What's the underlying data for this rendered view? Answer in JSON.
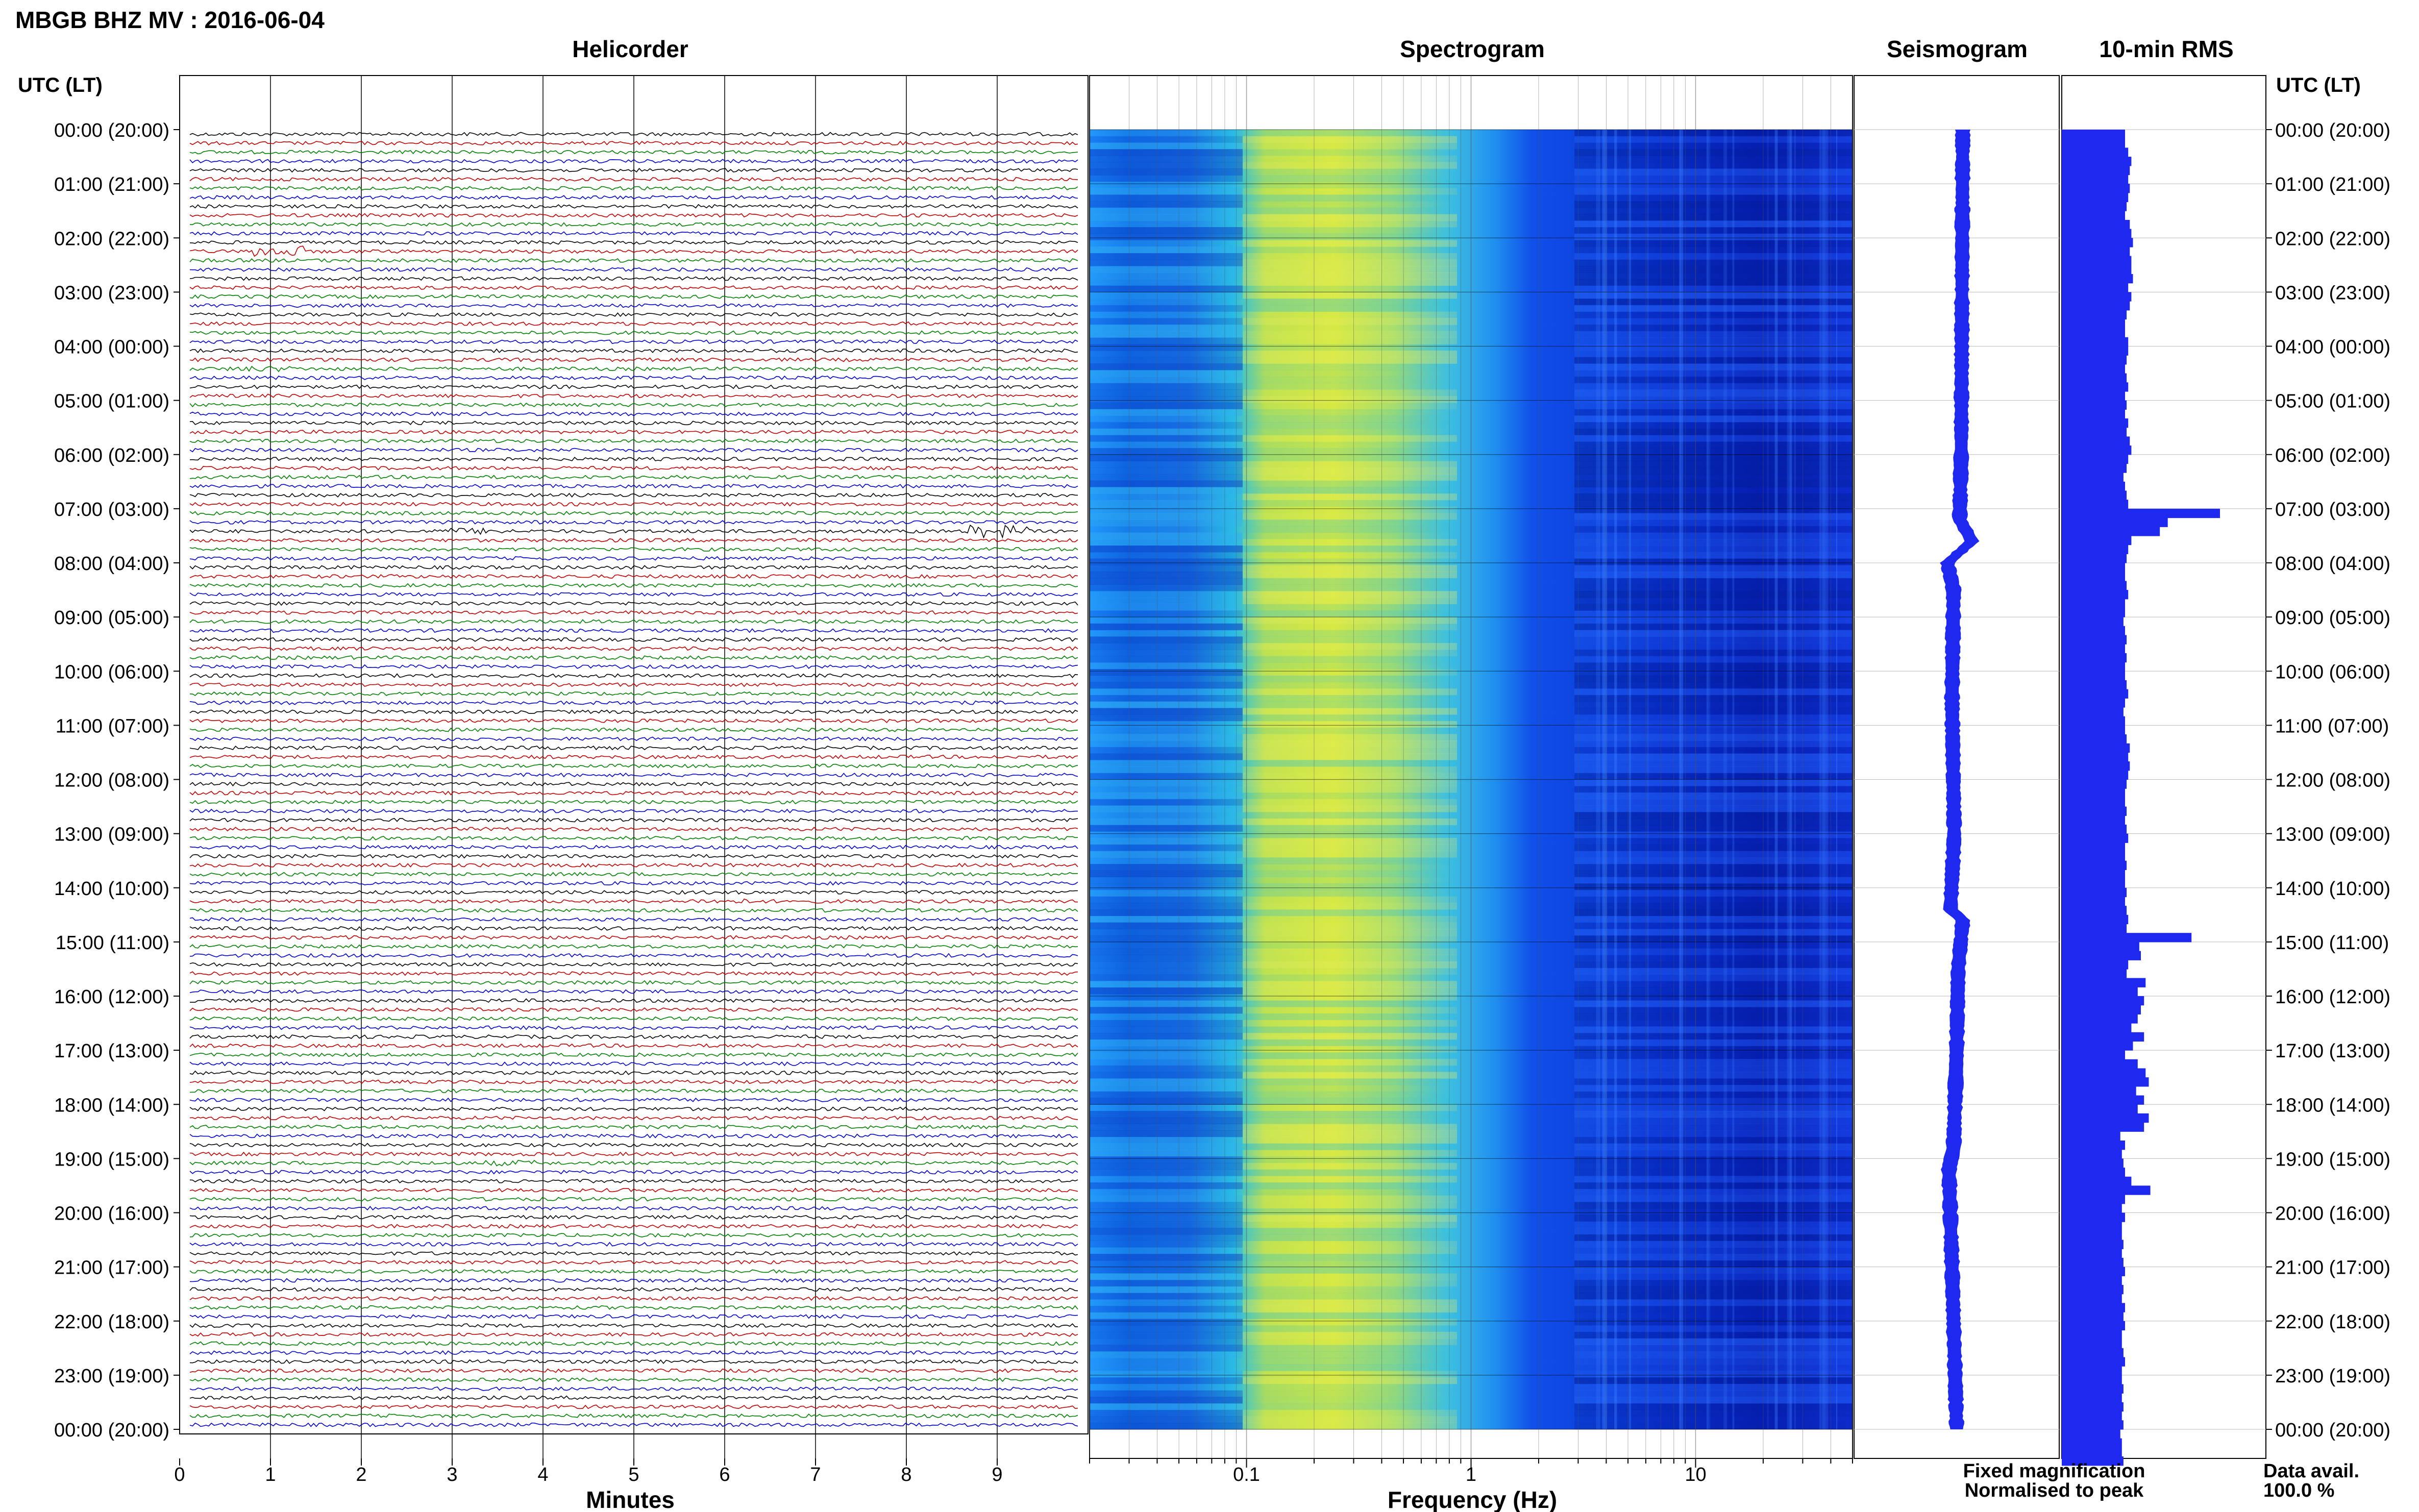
{
  "header": {
    "title": "MBGB BHZ MV : 2016-06-04"
  },
  "panels": {
    "helicorder": "Helicorder",
    "spectrogram": "Spectrogram",
    "seismogram": "Seismogram",
    "rms": "10-min RMS"
  },
  "time_axis": {
    "title_left": "UTC (LT)",
    "title_right": "UTC (LT)",
    "labels": [
      "00:00 (20:00)",
      "01:00 (21:00)",
      "02:00 (22:00)",
      "03:00 (23:00)",
      "04:00 (00:00)",
      "05:00 (01:00)",
      "06:00 (02:00)",
      "07:00 (03:00)",
      "08:00 (04:00)",
      "09:00 (05:00)",
      "10:00 (06:00)",
      "11:00 (07:00)",
      "12:00 (08:00)",
      "13:00 (09:00)",
      "14:00 (10:00)",
      "15:00 (11:00)",
      "16:00 (12:00)",
      "17:00 (13:00)",
      "18:00 (14:00)",
      "19:00 (15:00)",
      "20:00 (16:00)",
      "21:00 (17:00)",
      "22:00 (18:00)",
      "23:00 (19:00)",
      "00:00 (20:00)"
    ]
  },
  "legend": {
    "fixed": "Fixed magnification",
    "normalised": "Normalised to peak",
    "fixed_color": "#1a1aff",
    "normalised_color": "#ff1a1a"
  },
  "data_avail": {
    "label": "Data avail.",
    "value": "100.0 %"
  },
  "colors": {
    "trace_cycle": [
      "#000000",
      "#c00000",
      "#008000",
      "#0000cc"
    ],
    "rms_fill": "#1e28ee",
    "seis_fill": "#1e28ee"
  },
  "chart_data": [
    {
      "type": "line",
      "panel": "helicorder",
      "xlabel": "Minutes",
      "xlim": [
        0,
        10
      ],
      "x_ticks": [
        "0",
        "1",
        "2",
        "3",
        "4",
        "5",
        "6",
        "7",
        "8",
        "9"
      ],
      "rows_per_hour": 6,
      "hours": 24,
      "events": [
        {
          "hour": 2.2,
          "minute": 1.0,
          "amp": 3.0
        },
        {
          "hour": 4.3,
          "minute": 0.8,
          "amp": 1.6
        },
        {
          "hour": 7.3,
          "minute": 9.1,
          "amp": 3.5
        },
        {
          "hour": 7.3,
          "minute": 3.2,
          "amp": 1.8
        },
        {
          "hour": 18.95,
          "minute": 3.6,
          "amp": 1.6
        },
        {
          "hour": 14.2,
          "minute": 6.0,
          "amp": 1.4
        }
      ]
    },
    {
      "type": "heatmap",
      "panel": "spectrogram",
      "xlabel": "Frequency (Hz)",
      "x_scale": "log",
      "xlim": [
        0.02,
        50
      ],
      "x_ticks": [
        "0.1",
        "1",
        "10"
      ]
    },
    {
      "type": "area",
      "panel": "seismogram",
      "values": [
        {
          "hour": 0,
          "v": 0.3
        },
        {
          "hour": 6,
          "v": 0.25
        },
        {
          "hour": 7.2,
          "v": 0.2
        },
        {
          "hour": 7.6,
          "v": 0.6
        },
        {
          "hour": 8.0,
          "v": -0.2
        },
        {
          "hour": 8.5,
          "v": 0.0
        },
        {
          "hour": 10.5,
          "v": -0.05
        },
        {
          "hour": 13.0,
          "v": 0.02
        },
        {
          "hour": 14.4,
          "v": -0.1
        },
        {
          "hour": 14.6,
          "v": 0.3
        },
        {
          "hour": 15.5,
          "v": 0.15
        },
        {
          "hour": 17.0,
          "v": 0.1
        },
        {
          "hour": 18.8,
          "v": 0.0
        },
        {
          "hour": 19.2,
          "v": -0.15
        },
        {
          "hour": 21.0,
          "v": -0.05
        },
        {
          "hour": 24.0,
          "v": 0.1
        }
      ]
    },
    {
      "type": "bar",
      "panel": "rms",
      "unit": "relative",
      "bins_per_hour": 6,
      "values": [
        0.4,
        0.4,
        0.42,
        0.44,
        0.43,
        0.42,
        0.43,
        0.42,
        0.41,
        0.4,
        0.43,
        0.44,
        0.45,
        0.43,
        0.44,
        0.44,
        0.45,
        0.42,
        0.44,
        0.43,
        0.41,
        0.4,
        0.4,
        0.42,
        0.42,
        0.41,
        0.4,
        0.41,
        0.42,
        0.4,
        0.41,
        0.4,
        0.42,
        0.41,
        0.43,
        0.44,
        0.42,
        0.41,
        0.39,
        0.4,
        0.41,
        0.42,
        1.0,
        0.67,
        0.62,
        0.44,
        0.42,
        0.41,
        0.4,
        0.4,
        0.41,
        0.42,
        0.4,
        0.4,
        0.39,
        0.4,
        0.41,
        0.4,
        0.41,
        0.4,
        0.4,
        0.41,
        0.42,
        0.4,
        0.39,
        0.4,
        0.4,
        0.41,
        0.43,
        0.42,
        0.43,
        0.42,
        0.41,
        0.4,
        0.4,
        0.41,
        0.4,
        0.41,
        0.42,
        0.4,
        0.4,
        0.41,
        0.4,
        0.4,
        0.41,
        0.4,
        0.41,
        0.42,
        0.41,
        0.82,
        0.49,
        0.5,
        0.42,
        0.41,
        0.53,
        0.48,
        0.52,
        0.5,
        0.48,
        0.44,
        0.52,
        0.45,
        0.4,
        0.48,
        0.53,
        0.55,
        0.47,
        0.52,
        0.48,
        0.55,
        0.52,
        0.37,
        0.4,
        0.38,
        0.39,
        0.4,
        0.44,
        0.56,
        0.4,
        0.38,
        0.4,
        0.38,
        0.38,
        0.39,
        0.38,
        0.39,
        0.4,
        0.38,
        0.39,
        0.38,
        0.4,
        0.39,
        0.4,
        0.38,
        0.38,
        0.39,
        0.4,
        0.38,
        0.38,
        0.39,
        0.38,
        0.39,
        0.38,
        0.39,
        0.37,
        0.38,
        0.38,
        0.39
      ]
    }
  ]
}
